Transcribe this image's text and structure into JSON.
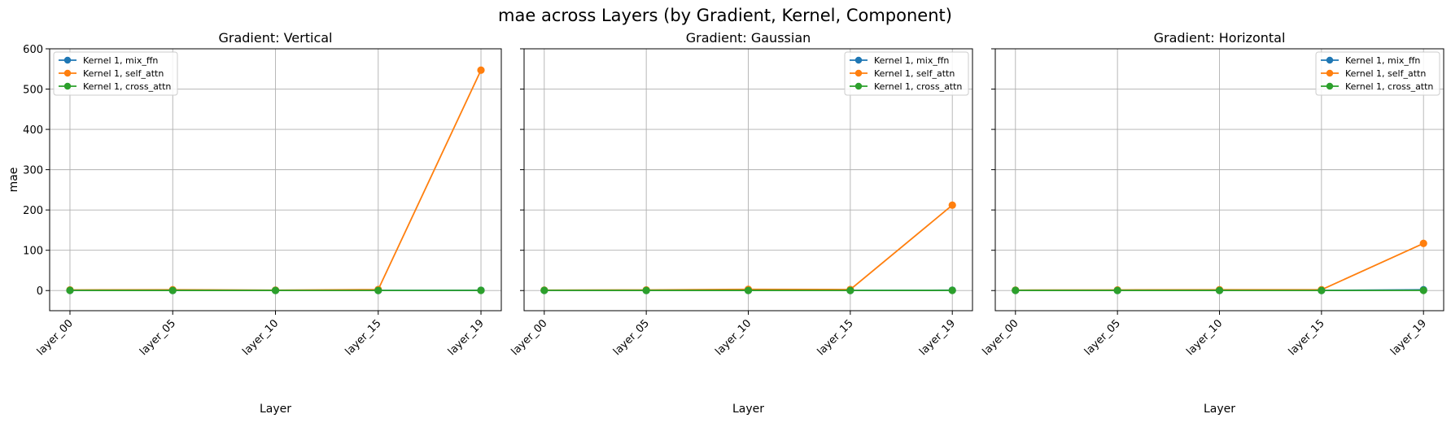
{
  "figure": {
    "title": "mae across Layers (by Gradient, Kernel, Component)"
  },
  "chart_data": [
    {
      "type": "line",
      "title": "Gradient: Vertical",
      "xlabel": "Layer",
      "ylabel": "mae",
      "categories": [
        "layer_00",
        "layer_05",
        "layer_10",
        "layer_15",
        "layer_19"
      ],
      "ylim": [
        -50,
        600
      ],
      "yticks": [
        0,
        100,
        200,
        300,
        400,
        500,
        600
      ],
      "grid": true,
      "legend_position": "top-left",
      "series": [
        {
          "name": "Kernel 1, mix_ffn",
          "color": "#1f77b4",
          "values": [
            0.5,
            0.3,
            0.4,
            0.3,
            0.6
          ]
        },
        {
          "name": "Kernel 1, self_attn",
          "color": "#ff7f0e",
          "values": [
            1.5,
            2.0,
            1.0,
            2.5,
            547
          ]
        },
        {
          "name": "Kernel 1, cross_attn",
          "color": "#2ca02c",
          "values": [
            0.4,
            0.3,
            0.3,
            0.2,
            0.4
          ]
        }
      ]
    },
    {
      "type": "line",
      "title": "Gradient: Gaussian",
      "xlabel": "Layer",
      "ylabel": "",
      "categories": [
        "layer_00",
        "layer_05",
        "layer_10",
        "layer_15",
        "layer_19"
      ],
      "ylim": [
        -50,
        600
      ],
      "yticks": [
        0,
        100,
        200,
        300,
        400,
        500,
        600
      ],
      "grid": true,
      "legend_position": "top-right",
      "series": [
        {
          "name": "Kernel 1, mix_ffn",
          "color": "#1f77b4",
          "values": [
            0.5,
            0.3,
            0.4,
            0.3,
            0.8
          ]
        },
        {
          "name": "Kernel 1, self_attn",
          "color": "#ff7f0e",
          "values": [
            1.0,
            1.5,
            3.0,
            2.5,
            212
          ]
        },
        {
          "name": "Kernel 1, cross_attn",
          "color": "#2ca02c",
          "values": [
            0.4,
            0.3,
            0.3,
            0.2,
            0.4
          ]
        }
      ]
    },
    {
      "type": "line",
      "title": "Gradient: Horizontal",
      "xlabel": "Layer",
      "ylabel": "",
      "categories": [
        "layer_00",
        "layer_05",
        "layer_10",
        "layer_15",
        "layer_19"
      ],
      "ylim": [
        -50,
        600
      ],
      "yticks": [
        0,
        100,
        200,
        300,
        400,
        500,
        600
      ],
      "grid": true,
      "legend_position": "top-right",
      "series": [
        {
          "name": "Kernel 1, mix_ffn",
          "color": "#1f77b4",
          "values": [
            0.5,
            0.3,
            0.4,
            0.3,
            2.0
          ]
        },
        {
          "name": "Kernel 1, self_attn",
          "color": "#ff7f0e",
          "values": [
            1.0,
            1.5,
            2.0,
            2.0,
            117
          ]
        },
        {
          "name": "Kernel 1, cross_attn",
          "color": "#2ca02c",
          "values": [
            0.4,
            0.3,
            0.3,
            0.2,
            0.4
          ]
        }
      ]
    }
  ]
}
